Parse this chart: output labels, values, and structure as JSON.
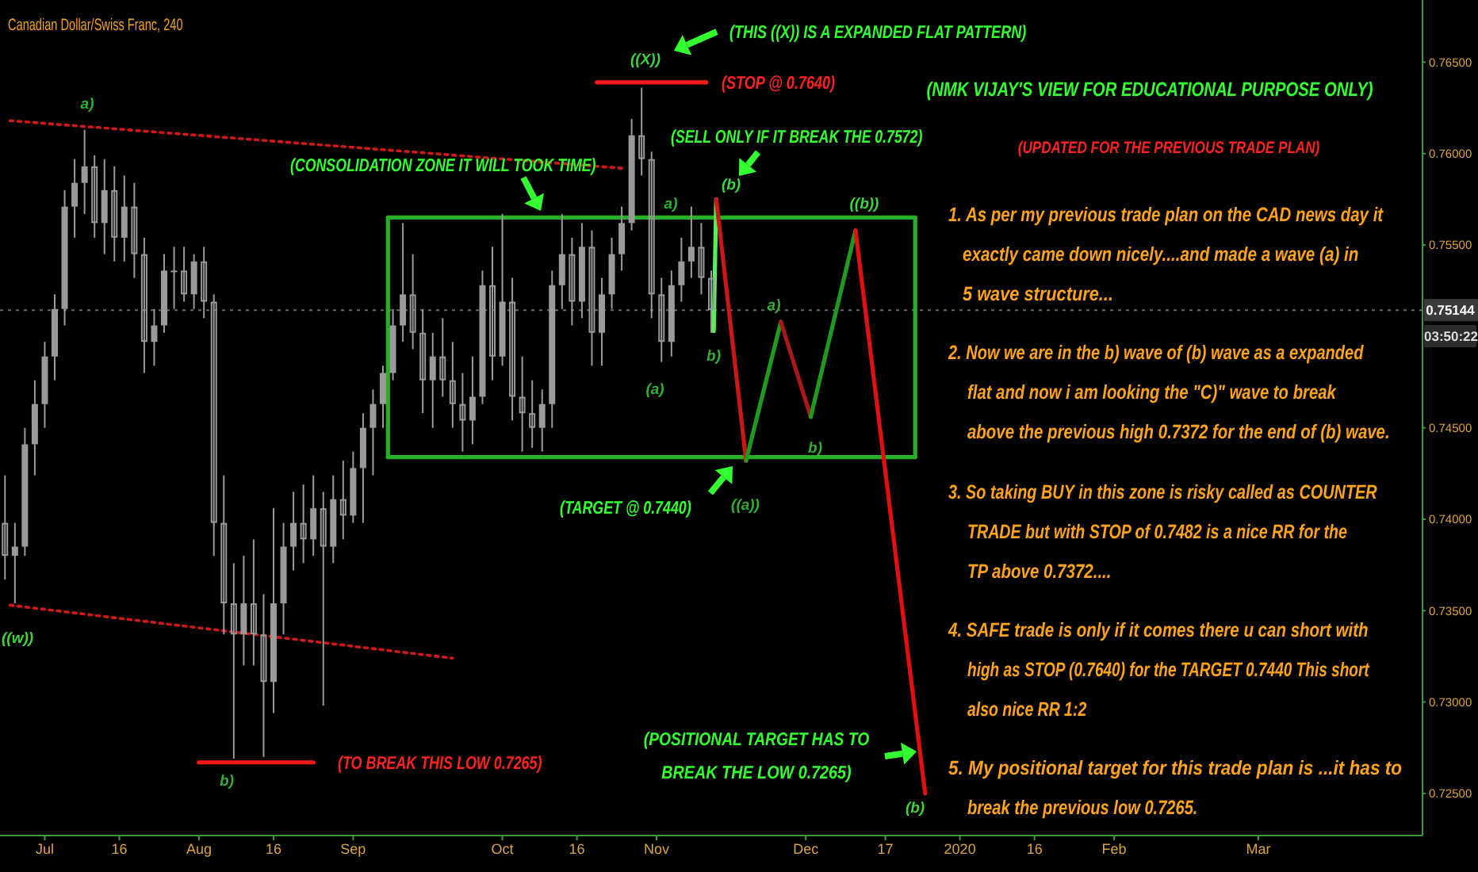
{
  "chart_data": {
    "type": "candlestick",
    "title": "Canadian Dollar/Swiss Franc, 240",
    "color": "#9a9a9a",
    "x": [
      "2019-06-23",
      "2019-06-25",
      "2019-06-27",
      "2019-06-29",
      "2019-07-01",
      "2019-07-03",
      "2019-07-05",
      "2019-07-07",
      "2019-07-09",
      "2019-07-11",
      "2019-07-13",
      "2019-07-15",
      "2019-07-17",
      "2019-07-19",
      "2019-07-21",
      "2019-07-23",
      "2019-07-25",
      "2019-07-27",
      "2019-07-29",
      "2019-07-31",
      "2019-08-02",
      "2019-08-04",
      "2019-08-06",
      "2019-08-08",
      "2019-08-10",
      "2019-08-12",
      "2019-08-14",
      "2019-08-16",
      "2019-08-18",
      "2019-08-20",
      "2019-08-22",
      "2019-08-24",
      "2019-08-26",
      "2019-08-28",
      "2019-08-30",
      "2019-09-01",
      "2019-09-03",
      "2019-09-05",
      "2019-09-07",
      "2019-09-09",
      "2019-09-11",
      "2019-09-13",
      "2019-09-15",
      "2019-09-17",
      "2019-09-19",
      "2019-09-21",
      "2019-09-23",
      "2019-09-25",
      "2019-09-27",
      "2019-09-29",
      "2019-10-01",
      "2019-10-03",
      "2019-10-05",
      "2019-10-07",
      "2019-10-09",
      "2019-10-11",
      "2019-10-13",
      "2019-10-15",
      "2019-10-17",
      "2019-10-19",
      "2019-10-21",
      "2019-10-23",
      "2019-10-25",
      "2019-10-27",
      "2019-10-29",
      "2019-10-31",
      "2019-11-02",
      "2019-11-04",
      "2019-11-06",
      "2019-11-08",
      "2019-11-10",
      "2019-11-12"
    ],
    "ohlc": [
      [
        0.7398,
        0.7424,
        0.7367,
        0.738
      ],
      [
        0.738,
        0.7398,
        0.7354,
        0.7385
      ],
      [
        0.7385,
        0.745,
        0.738,
        0.7441
      ],
      [
        0.7441,
        0.7476,
        0.7424,
        0.7463
      ],
      [
        0.7463,
        0.7497,
        0.745,
        0.7489
      ],
      [
        0.7489,
        0.7523,
        0.7476,
        0.7515
      ],
      [
        0.7515,
        0.758,
        0.7506,
        0.7571
      ],
      [
        0.7571,
        0.7597,
        0.7554,
        0.7584
      ],
      [
        0.7584,
        0.7613,
        0.7567,
        0.7593
      ],
      [
        0.7593,
        0.7599,
        0.7554,
        0.7562
      ],
      [
        0.7562,
        0.7597,
        0.7545,
        0.758
      ],
      [
        0.758,
        0.7593,
        0.7541,
        0.7554
      ],
      [
        0.7554,
        0.7588,
        0.7541,
        0.7571
      ],
      [
        0.7571,
        0.7584,
        0.7532,
        0.7545
      ],
      [
        0.7545,
        0.7554,
        0.748,
        0.7497
      ],
      [
        0.7497,
        0.7515,
        0.7484,
        0.7506
      ],
      [
        0.7506,
        0.7545,
        0.7502,
        0.7536
      ],
      [
        0.7536,
        0.7549,
        0.7515,
        0.7536
      ],
      [
        0.7536,
        0.7549,
        0.7519,
        0.7523
      ],
      [
        0.7523,
        0.7545,
        0.7515,
        0.7541
      ],
      [
        0.7541,
        0.7549,
        0.751,
        0.7519
      ],
      [
        0.7519,
        0.7523,
        0.738,
        0.7398
      ],
      [
        0.7398,
        0.7424,
        0.7337,
        0.7354
      ],
      [
        0.7354,
        0.7376,
        0.7269,
        0.7337
      ],
      [
        0.7337,
        0.738,
        0.732,
        0.7354
      ],
      [
        0.7354,
        0.7389,
        0.732,
        0.7337
      ],
      [
        0.7337,
        0.7359,
        0.727,
        0.7311
      ],
      [
        0.7311,
        0.7406,
        0.7294,
        0.7354
      ],
      [
        0.7354,
        0.7398,
        0.7337,
        0.7385
      ],
      [
        0.7385,
        0.7415,
        0.7372,
        0.7398
      ],
      [
        0.7398,
        0.7419,
        0.7376,
        0.7389
      ],
      [
        0.7389,
        0.7424,
        0.738,
        0.7406
      ],
      [
        0.7406,
        0.7415,
        0.7298,
        0.7385
      ],
      [
        0.7385,
        0.7424,
        0.7376,
        0.7411
      ],
      [
        0.7411,
        0.7432,
        0.7389,
        0.7402
      ],
      [
        0.7402,
        0.7437,
        0.7398,
        0.7428
      ],
      [
        0.7428,
        0.7458,
        0.7398,
        0.745
      ],
      [
        0.745,
        0.7471,
        0.7424,
        0.7463
      ],
      [
        0.7463,
        0.7484,
        0.745,
        0.748
      ],
      [
        0.748,
        0.7515,
        0.7476,
        0.7506
      ],
      [
        0.7506,
        0.7562,
        0.7497,
        0.7523
      ],
      [
        0.7523,
        0.7545,
        0.7493,
        0.7502
      ],
      [
        0.7502,
        0.7515,
        0.7458,
        0.7476
      ],
      [
        0.7476,
        0.7502,
        0.745,
        0.7489
      ],
      [
        0.7489,
        0.751,
        0.7467,
        0.7476
      ],
      [
        0.7476,
        0.7497,
        0.745,
        0.7463
      ],
      [
        0.7463,
        0.748,
        0.7437,
        0.7454
      ],
      [
        0.7454,
        0.7489,
        0.7441,
        0.7467
      ],
      [
        0.7467,
        0.7536,
        0.7463,
        0.7528
      ],
      [
        0.7528,
        0.7549,
        0.7476,
        0.7489
      ],
      [
        0.7489,
        0.7567,
        0.7484,
        0.7519
      ],
      [
        0.7519,
        0.7532,
        0.7454,
        0.7467
      ],
      [
        0.7467,
        0.7489,
        0.7437,
        0.7458
      ],
      [
        0.7458,
        0.7476,
        0.7439,
        0.745
      ],
      [
        0.745,
        0.7471,
        0.7437,
        0.7463
      ],
      [
        0.7463,
        0.7536,
        0.745,
        0.7528
      ],
      [
        0.7528,
        0.7567,
        0.7515,
        0.7545
      ],
      [
        0.7545,
        0.7554,
        0.7506,
        0.7519
      ],
      [
        0.7519,
        0.7562,
        0.751,
        0.7549
      ],
      [
        0.7549,
        0.7558,
        0.7484,
        0.7502
      ],
      [
        0.7502,
        0.7532,
        0.7484,
        0.7523
      ],
      [
        0.7523,
        0.7554,
        0.7515,
        0.7545
      ],
      [
        0.7545,
        0.7571,
        0.7536,
        0.7562
      ],
      [
        0.7562,
        0.7619,
        0.7558,
        0.761
      ],
      [
        0.761,
        0.7636,
        0.7588,
        0.7597
      ],
      [
        0.7597,
        0.7601,
        0.751,
        0.7523
      ],
      [
        0.7523,
        0.7532,
        0.7486,
        0.7497
      ],
      [
        0.7497,
        0.7536,
        0.7489,
        0.7528
      ],
      [
        0.7528,
        0.7554,
        0.7519,
        0.7541
      ],
      [
        0.7541,
        0.7571,
        0.7532,
        0.7549
      ],
      [
        0.7549,
        0.7562,
        0.7523,
        0.7532
      ],
      [
        0.7532,
        0.7536,
        0.7502,
        0.75144
      ]
    ],
    "series": [
      {
        "type": "line",
        "color": "#26b026",
        "line_style": "solid",
        "x": [
          "2019-09-08",
          "2019-12-23"
        ],
        "values": [
          0.7565,
          0.7565
        ]
      },
      {
        "type": "line",
        "color": "#26b026",
        "line_style": "solid",
        "x": [
          "2019-09-08",
          "2019-12-23"
        ],
        "values": [
          0.7434,
          0.7434
        ]
      },
      {
        "type": "line",
        "color": "#26b026",
        "line_style": "solid",
        "x": [
          "2019-09-08",
          "2019-09-08"
        ],
        "values": [
          0.7434,
          0.7565
        ]
      },
      {
        "type": "line",
        "color": "#26b026",
        "line_style": "solid",
        "x": [
          "2019-12-23",
          "2019-12-23"
        ],
        "values": [
          0.7434,
          0.7565
        ]
      },
      {
        "type": "line",
        "color": "#ff1a1a",
        "line_style": "solid",
        "x": [
          "2019-10-20",
          "2019-11-11"
        ],
        "values": [
          0.7639,
          0.7639
        ]
      },
      {
        "type": "line",
        "color": "#ff1a1a",
        "line_style": "solid",
        "x": [
          "2019-08-01",
          "2019-08-24"
        ],
        "values": [
          0.7267,
          0.7267
        ]
      },
      {
        "type": "line",
        "color": "#d01818",
        "line_style": "dotted",
        "x": [
          "2019-06-24",
          "2019-10-25"
        ],
        "values": [
          0.7618,
          0.7592
        ]
      },
      {
        "type": "line",
        "color": "#d01818",
        "line_style": "dotted",
        "x": [
          "2019-06-24",
          "2019-09-21"
        ],
        "values": [
          0.7353,
          0.7324
        ]
      },
      {
        "type": "line",
        "color": "#55f055",
        "line_style": "solid",
        "x": [
          "2019-11-12T12:00",
          "2019-11-13"
        ],
        "values": [
          0.7503,
          0.7575
        ]
      },
      {
        "type": "line",
        "color": "#c81818",
        "line_style": "solid",
        "x": [
          "2019-11-13",
          "2019-11-19"
        ],
        "values": [
          0.7575,
          0.7432
        ]
      },
      {
        "type": "line",
        "color": "#1f9a1f",
        "line_style": "solid",
        "x": [
          "2019-11-19",
          "2019-11-26"
        ],
        "values": [
          0.7432,
          0.7508
        ]
      },
      {
        "type": "line",
        "color": "#a81818",
        "line_style": "solid",
        "x": [
          "2019-11-26",
          "2019-12-02"
        ],
        "values": [
          0.7508,
          0.7456
        ]
      },
      {
        "type": "line",
        "color": "#1f9a1f",
        "line_style": "solid",
        "x": [
          "2019-12-02",
          "2019-12-11"
        ],
        "values": [
          0.7456,
          0.7558
        ]
      },
      {
        "type": "line",
        "color": "#e01010",
        "line_style": "solid",
        "x": [
          "2019-12-11",
          "2019-12-25"
        ],
        "values": [
          0.7558,
          0.725
        ]
      }
    ],
    "xlim": [
      "2019-06-22",
      "2020-04-03"
    ],
    "xticks": [
      {
        "value": "2019-07-01",
        "label": "Jul"
      },
      {
        "value": "2019-07-16",
        "label": "16"
      },
      {
        "value": "2019-08-01",
        "label": "Aug"
      },
      {
        "value": "2019-08-16",
        "label": "16"
      },
      {
        "value": "2019-09-01",
        "label": "Sep"
      },
      {
        "value": "2019-10-01",
        "label": "Oct"
      },
      {
        "value": "2019-10-16",
        "label": "16"
      },
      {
        "value": "2019-11-01",
        "label": "Nov"
      },
      {
        "value": "2019-12-01",
        "label": "Dec"
      },
      {
        "value": "2019-12-17",
        "label": "17"
      },
      {
        "value": "2020-01-01",
        "label": "2020"
      },
      {
        "value": "2020-01-16",
        "label": "16"
      },
      {
        "value": "2020-02-01",
        "label": "Feb"
      },
      {
        "value": "2020-03-01",
        "label": "Mar"
      }
    ],
    "ylim": [
      0.7227,
      0.7684
    ],
    "yticks": [
      {
        "value": 0.725,
        "label": "0.72500"
      },
      {
        "value": 0.73,
        "label": "0.73000"
      },
      {
        "value": 0.735,
        "label": "0.73500"
      },
      {
        "value": 0.74,
        "label": "0.74000"
      },
      {
        "value": 0.745,
        "label": "0.74500"
      },
      {
        "value": 0.755,
        "label": "0.75500"
      },
      {
        "value": 0.76,
        "label": "0.76000"
      },
      {
        "value": 0.765,
        "label": "0.76500"
      }
    ],
    "ref_lines": [
      {
        "axis": "y",
        "value": 0.75144,
        "label": "0.75144",
        "color": "#6a6a6a",
        "line_style": "dotted"
      }
    ],
    "annotations": [
      "a)",
      "((X))",
      "((w))",
      "b)",
      "a)",
      "(a)",
      "b)",
      "(b)",
      "((a))",
      "a)",
      "b)",
      "((b))",
      "(b)",
      "(THIS ((X)) IS A EXPANDED FLAT PATTERN)",
      "(STOP @ 0.7640)",
      "(SELL ONLY IF IT BREAK THE 0.7572)",
      "(CONSOLIDATION ZONE IT WILL TOOK TIME)",
      "(TARGET @ 0.7440)",
      "(TO BREAK THIS LOW 0.7265)",
      "(POSITIONAL TARGET HAS TO BREAK THE LOW 0.7265)",
      "(NMK VIJAY'S VIEW FOR EDUCATIONAL PURPOSE ONLY)",
      "(UPDATED FOR THE PREVIOUS TRADE PLAN)",
      "1. As per my previous trade plan on the CAD news day it\nexactly came down nicely....and made a wave (a) in\n5 wave structure...",
      "2. Now we are in the b) wave of (b) wave as a expanded\nflat and now i am looking the \"C)\" wave to break\nabove the previous high 0.7372 for the end of (b) wave.",
      "3.  So taking BUY in this zone is risky called as COUNTER\nTRADE but with STOP of 0.7482 is a nice RR for the\nTP above 0.7372....",
      "4. SAFE trade is only if it comes there u can short  with\nhigh as STOP (0.7640) for the TARGET 0.7440 This short\nalso nice RR 1:2",
      "5. My positional target for this trade plan is ...it has to\nbreak the previous low 0.7265.",
      "03:50:22"
    ]
  }
}
